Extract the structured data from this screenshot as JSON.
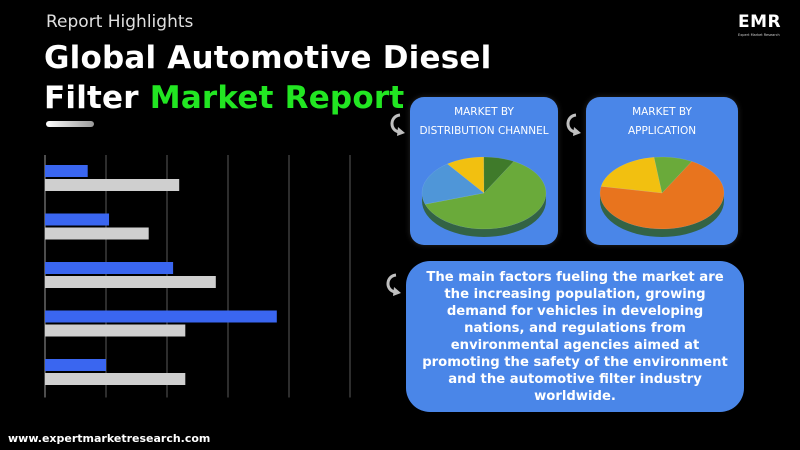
{
  "header": {
    "subtitle": "Report Highlights",
    "title_line1": "Global Automotive Diesel",
    "title_line2_plain": "Filter ",
    "title_line2_accent": "Market Report"
  },
  "logo": {
    "text": "EMR",
    "tagline": "Expert Market Research"
  },
  "cards": {
    "distribution": {
      "title_line1": "MARKET BY",
      "title_line2": "DISTRIBUTION CHANNEL"
    },
    "application": {
      "title_line1": "MARKET BY",
      "title_line2": "APPLICATION"
    }
  },
  "summary": "The main factors fueling the market are the increasing population, growing demand for vehicles in developing nations, and regulations from environmental agencies aimed at promoting the safety of the environment and the automotive filter industry worldwide.",
  "footer": {
    "url": "www.expertmarketresearch.com"
  },
  "colors": {
    "blue": "#3a66f0",
    "gray": "#cfcfcf",
    "card": "#4a86e8",
    "accent": "#22e622"
  },
  "chart_data": [
    {
      "type": "bar",
      "orientation": "horizontal",
      "categories": [
        "",
        "",
        "",
        "",
        ""
      ],
      "series": [
        {
          "values": [
            0.7,
            1.05,
            2.1,
            3.8,
            1.0
          ]
        },
        {
          "values": [
            2.2,
            1.7,
            2.8,
            2.3,
            2.3
          ]
        }
      ],
      "xlim": [
        0,
        5
      ],
      "grid": true
    },
    {
      "type": "pie",
      "slices": [
        {
          "value": 62,
          "color": "#6aaa3a"
        },
        {
          "value": 20,
          "color": "#4f96d8"
        },
        {
          "value": 10,
          "color": "#f2c010"
        },
        {
          "value": 8,
          "color": "#3f7a2a"
        }
      ]
    },
    {
      "type": "pie",
      "slices": [
        {
          "value": 70,
          "color": "#e8741e"
        },
        {
          "value": 20,
          "color": "#f2c010"
        },
        {
          "value": 10,
          "color": "#6aaa3a"
        }
      ]
    }
  ]
}
